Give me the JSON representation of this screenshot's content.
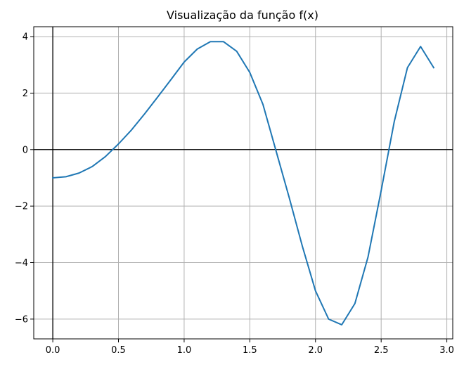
{
  "chart_data": {
    "type": "line",
    "title": "Visualização da função f(x)",
    "xlabel": "",
    "ylabel": "",
    "xlim": [
      -0.145,
      3.045
    ],
    "ylim": [
      -6.7,
      4.35
    ],
    "grid": true,
    "x_ticks": [
      0.0,
      0.5,
      1.0,
      1.5,
      2.0,
      2.5,
      3.0
    ],
    "x_tick_labels": [
      "0.0",
      "0.5",
      "1.0",
      "1.5",
      "2.0",
      "2.5",
      "3.0"
    ],
    "y_ticks": [
      -6,
      -4,
      -2,
      0,
      2,
      4
    ],
    "y_tick_labels": [
      "−6",
      "−4",
      "−2",
      "0",
      "2",
      "4"
    ],
    "reference_lines": {
      "x": 0,
      "y": 0
    },
    "series": [
      {
        "color": "#1f77b4",
        "x": [
          0.0,
          0.1,
          0.2,
          0.3,
          0.4,
          0.5,
          0.6,
          0.7,
          0.8,
          0.9,
          1.0,
          1.1,
          1.2,
          1.3,
          1.4,
          1.5,
          1.6,
          1.7,
          1.8,
          1.9,
          2.0,
          2.1,
          2.2,
          2.3,
          2.4,
          2.5,
          2.6,
          2.7,
          2.8,
          2.9
        ],
        "y": [
          -1.0,
          -0.96,
          -0.83,
          -0.6,
          -0.25,
          0.2,
          0.7,
          1.27,
          1.87,
          2.48,
          3.1,
          3.56,
          3.82,
          3.82,
          3.48,
          2.73,
          1.6,
          -0.05,
          -1.7,
          -3.42,
          -5.0,
          -6.0,
          -6.2,
          -5.45,
          -3.8,
          -1.45,
          1.0,
          2.9,
          3.65,
          2.9
        ]
      }
    ]
  }
}
